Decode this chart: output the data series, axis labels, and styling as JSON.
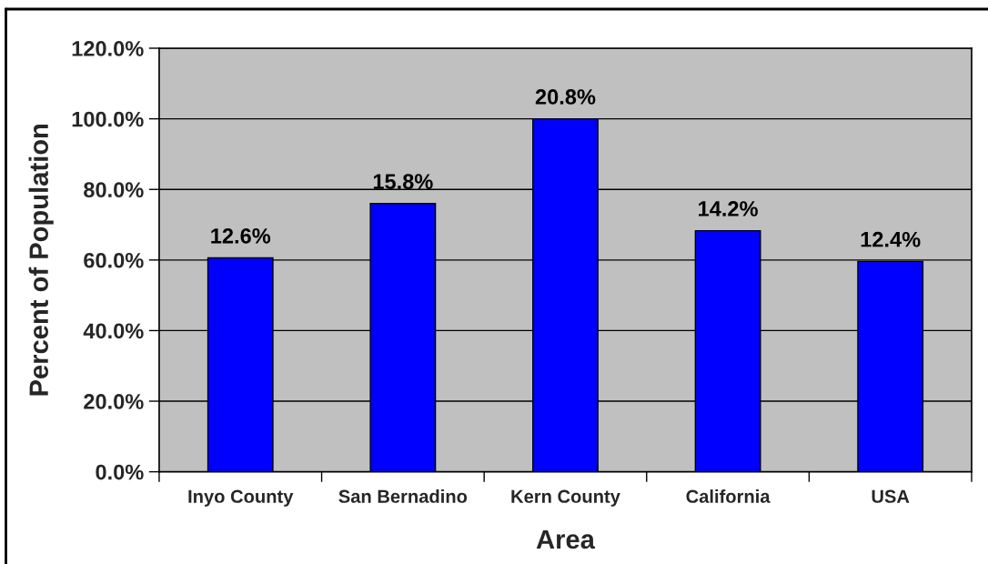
{
  "chart_data": {
    "type": "bar",
    "xlabel": "Area",
    "ylabel": "Percent of Population",
    "categories": [
      "Inyo County",
      "San Bernadino",
      "Kern County",
      "California",
      "USA"
    ],
    "values": [
      60.6,
      76.0,
      100,
      68.3,
      59.6
    ],
    "annotations": [
      {
        "text": "12.6%",
        "x": "Inyo County",
        "y": 60.6
      },
      {
        "text": "15.8%",
        "x": "San Bernadino",
        "y": 76.0
      },
      {
        "text": "20.8%",
        "x": "Kern County",
        "y": 100
      },
      {
        "text": "14.2%",
        "x": "California",
        "y": 68.3
      },
      {
        "text": "12.4%",
        "x": "USA",
        "y": 59.6
      }
    ],
    "color": "#0000ff",
    "ylim": [
      0,
      120
    ],
    "yticks": [
      {
        "value": 0,
        "label": "0.0%"
      },
      {
        "value": 20,
        "label": "20.0%"
      },
      {
        "value": 40,
        "label": "40.0%"
      },
      {
        "value": 60,
        "label": "60.0%"
      },
      {
        "value": 80,
        "label": "80.0%"
      },
      {
        "value": 100,
        "label": "100.0%"
      },
      {
        "value": 120,
        "label": "120.0%"
      }
    ],
    "grid": "y"
  }
}
